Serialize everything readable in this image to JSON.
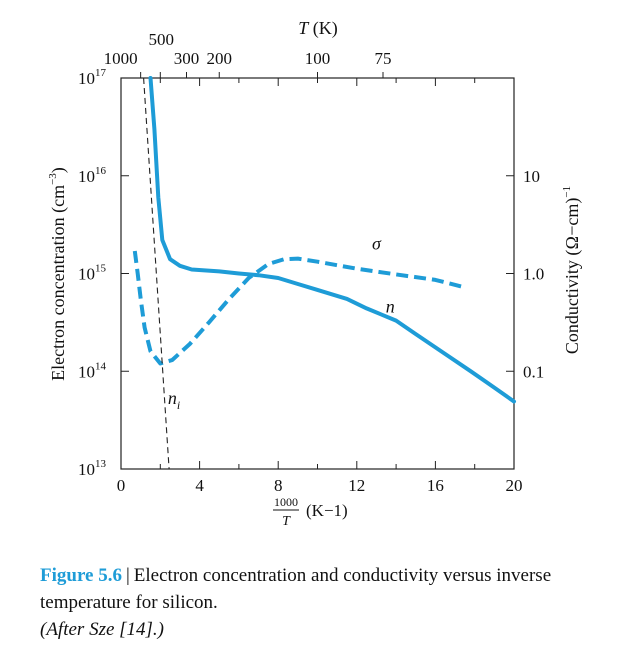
{
  "chart_data": {
    "type": "line",
    "accent_color": "#1e9cd7",
    "x_axis": {
      "label_top": "1000",
      "label_bottom": "T",
      "unit": "(K−1)",
      "range": [
        0,
        20
      ],
      "ticks": [
        0,
        4,
        8,
        12,
        16,
        20
      ],
      "tick_labels": [
        "0",
        "4",
        "8",
        "12",
        "16",
        "20"
      ],
      "minor_ticks": [
        2,
        6,
        10,
        14,
        18
      ]
    },
    "top_axis": {
      "label": "T (K)",
      "ticks_temperature_K": [
        1000,
        500,
        300,
        200,
        100,
        75
      ],
      "tick_labels": [
        "1000",
        "500",
        "300",
        "200",
        "100",
        "75"
      ]
    },
    "left_axis": {
      "label": "Electron concentration (cm−3)",
      "scale": "log",
      "range": [
        10000000000000.0,
        1e+17
      ],
      "ticks": [
        10000000000000.0,
        100000000000000.0,
        1000000000000000.0,
        1e+16,
        1e+17
      ],
      "tick_labels": [
        {
          "base": "10",
          "exp": "13"
        },
        {
          "base": "10",
          "exp": "14"
        },
        {
          "base": "10",
          "exp": "15"
        },
        {
          "base": "10",
          "exp": "16"
        },
        {
          "base": "10",
          "exp": "17"
        }
      ]
    },
    "right_axis": {
      "label": "Conductivity (Ω−cm)−1",
      "scale": "log",
      "range": [
        0.01,
        100
      ],
      "ticks": [
        0.1,
        1.0,
        10
      ],
      "tick_labels": [
        "0.1",
        "1.0",
        "10"
      ]
    },
    "series": [
      {
        "name": "n",
        "axis": "left",
        "style": "solid",
        "points": [
          [
            1.5,
            1e+17
          ],
          [
            1.7,
            3e+16
          ],
          [
            1.9,
            6000000000000000.0
          ],
          [
            2.1,
            2200000000000000.0
          ],
          [
            2.5,
            1400000000000000.0
          ],
          [
            3.0,
            1200000000000000.0
          ],
          [
            3.6,
            1100000000000000.0
          ],
          [
            5.0,
            1050000000000000.0
          ],
          [
            6.0,
            1000000000000000.0
          ],
          [
            7.0,
            960000000000000.0
          ],
          [
            8.0,
            900000000000000.0
          ],
          [
            9.0,
            780000000000000.0
          ],
          [
            10.0,
            680000000000000.0
          ],
          [
            11.5,
            550000000000000.0
          ],
          [
            12.5,
            440000000000000.0
          ],
          [
            14.0,
            330000000000000.0
          ],
          [
            15.0,
            240000000000000.0
          ],
          [
            16.5,
            150000000000000.0
          ],
          [
            17.8,
            100000000000000.0
          ],
          [
            19.0,
            68000000000000.0
          ],
          [
            20.0,
            49000000000000.0
          ]
        ]
      },
      {
        "name": "σ",
        "axis": "right",
        "style": "dashed",
        "points": [
          [
            0.7,
            1.7
          ],
          [
            0.85,
            1.0
          ],
          [
            1.0,
            0.55
          ],
          [
            1.2,
            0.28
          ],
          [
            1.5,
            0.16
          ],
          [
            2.0,
            0.12
          ],
          [
            2.6,
            0.13
          ],
          [
            3.5,
            0.19
          ],
          [
            4.5,
            0.32
          ],
          [
            5.5,
            0.55
          ],
          [
            6.5,
            0.9
          ],
          [
            7.5,
            1.25
          ],
          [
            8.3,
            1.4
          ],
          [
            9.0,
            1.42
          ],
          [
            10.0,
            1.32
          ],
          [
            12.0,
            1.12
          ],
          [
            14.0,
            0.98
          ],
          [
            16.0,
            0.86
          ],
          [
            17.5,
            0.72
          ]
        ]
      },
      {
        "name": "n",
        "name_sub": "i",
        "axis": "left",
        "style": "thin-dashed",
        "points": [
          [
            1.15,
            1e+17
          ],
          [
            2.45,
            10000000000000.0
          ]
        ]
      }
    ],
    "series_labels": [
      {
        "text": "σ",
        "series": 1,
        "x": 13.0,
        "value": 1.75
      },
      {
        "text": "n",
        "series": 0,
        "x": 13.7,
        "value": 400000000000000.0
      },
      {
        "text": "n",
        "sub": "i",
        "series": 2,
        "x": 2.7,
        "value": 46000000000000.0
      }
    ]
  },
  "caption": {
    "label": "Figure 5.6",
    "separator": "|",
    "text": "Electron concentration and conductivity versus inverse temperature for silicon.",
    "source": "(After Sze [14].)"
  }
}
